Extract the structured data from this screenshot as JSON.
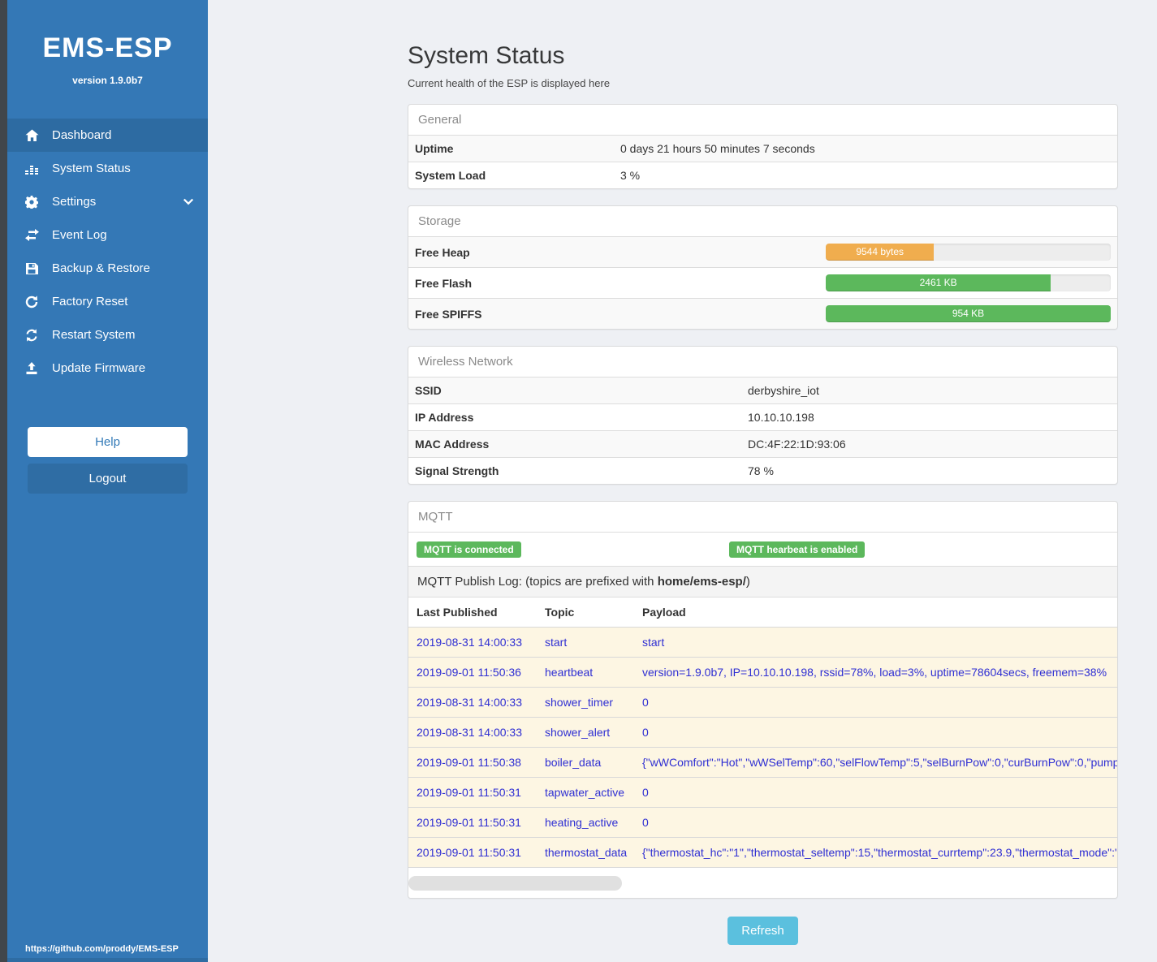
{
  "colors": {
    "sidebar_blue": "#3478b6",
    "sidebar_active": "#2d6ba2",
    "badge_green": "#5cb85c",
    "bar_orange": "#f0ad4e",
    "bar_green": "#5cb85c",
    "refresh_blue": "#5bc0de",
    "log_row_bg": "#fdf6e3",
    "log_text_blue": "#2f2fd3"
  },
  "sidebar": {
    "title": "EMS-ESP",
    "version": "version 1.9.0b7",
    "items": [
      {
        "label": "Dashboard",
        "icon": "home-icon"
      },
      {
        "label": "System Status",
        "icon": "system-status-icon"
      },
      {
        "label": "Settings",
        "icon": "gear-icon"
      },
      {
        "label": "Event Log",
        "icon": "swap-arrows-icon"
      },
      {
        "label": "Backup & Restore",
        "icon": "floppy-icon"
      },
      {
        "label": "Factory Reset",
        "icon": "rotate-icon"
      },
      {
        "label": "Restart System",
        "icon": "sync-icon"
      },
      {
        "label": "Update Firmware",
        "icon": "upload-icon"
      }
    ],
    "help_label": "Help",
    "logout_label": "Logout",
    "footer_link": "https://github.com/proddy/EMS-ESP"
  },
  "main": {
    "title": "System Status",
    "subtitle": "Current health of the ESP is displayed here"
  },
  "general": {
    "header": "General",
    "rows": [
      {
        "label": "Uptime",
        "value": "0 days 21 hours 50 minutes 7 seconds"
      },
      {
        "label": "System Load",
        "value": "3 %"
      }
    ]
  },
  "storage": {
    "header": "Storage",
    "rows": [
      {
        "label": "Free Heap",
        "bar_label": "9544 bytes",
        "percent": "38%",
        "color": "#f0ad4e"
      },
      {
        "label": "Free Flash",
        "bar_label": "2461 KB",
        "percent": "79%",
        "color": "#5cb85c"
      },
      {
        "label": "Free SPIFFS",
        "bar_label": "954 KB",
        "percent": "100%",
        "color": "#5cb85c"
      }
    ]
  },
  "wireless": {
    "header": "Wireless Network",
    "rows": [
      {
        "label": "SSID",
        "value": "derbyshire_iot"
      },
      {
        "label": "IP Address",
        "value": "10.10.10.198"
      },
      {
        "label": "MAC Address",
        "value": "DC:4F:22:1D:93:06"
      },
      {
        "label": "Signal Strength",
        "value": "78 %"
      }
    ]
  },
  "mqtt": {
    "header": "MQTT",
    "badges": [
      {
        "label": "MQTT is connected"
      },
      {
        "label": "MQTT hearbeat is enabled"
      }
    ],
    "publish_log": {
      "prefix": "MQTT Publish Log: (topics are prefixed with ",
      "bold": "home/ems-esp/",
      "suffix": ")"
    },
    "columns": [
      "Last Published",
      "Topic",
      "Payload"
    ],
    "log": [
      {
        "time": "2019-08-31 14:00:33",
        "topic": "start",
        "payload": "start"
      },
      {
        "time": "2019-09-01 11:50:36",
        "topic": "heartbeat",
        "payload": "version=1.9.0b7, IP=10.10.10.198, rssid=78%, load=3%, uptime=78604secs, freemem=38%"
      },
      {
        "time": "2019-08-31 14:00:33",
        "topic": "shower_timer",
        "payload": "0"
      },
      {
        "time": "2019-08-31 14:00:33",
        "topic": "shower_alert",
        "payload": "0"
      },
      {
        "time": "2019-09-01 11:50:38",
        "topic": "boiler_data",
        "payload": "{\"wWComfort\":\"Hot\",\"wWSelTemp\":60,\"selFlowTemp\":5,\"selBurnPow\":0,\"curBurnPow\":0,\"pump"
      },
      {
        "time": "2019-09-01 11:50:31",
        "topic": "tapwater_active",
        "payload": "0"
      },
      {
        "time": "2019-09-01 11:50:31",
        "topic": "heating_active",
        "payload": "0"
      },
      {
        "time": "2019-09-01 11:50:31",
        "topic": "thermostat_data",
        "payload": "{\"thermostat_hc\":\"1\",\"thermostat_seltemp\":15,\"thermostat_currtemp\":23.9,\"thermostat_mode\":\""
      }
    ],
    "refresh_label": "Refresh"
  }
}
